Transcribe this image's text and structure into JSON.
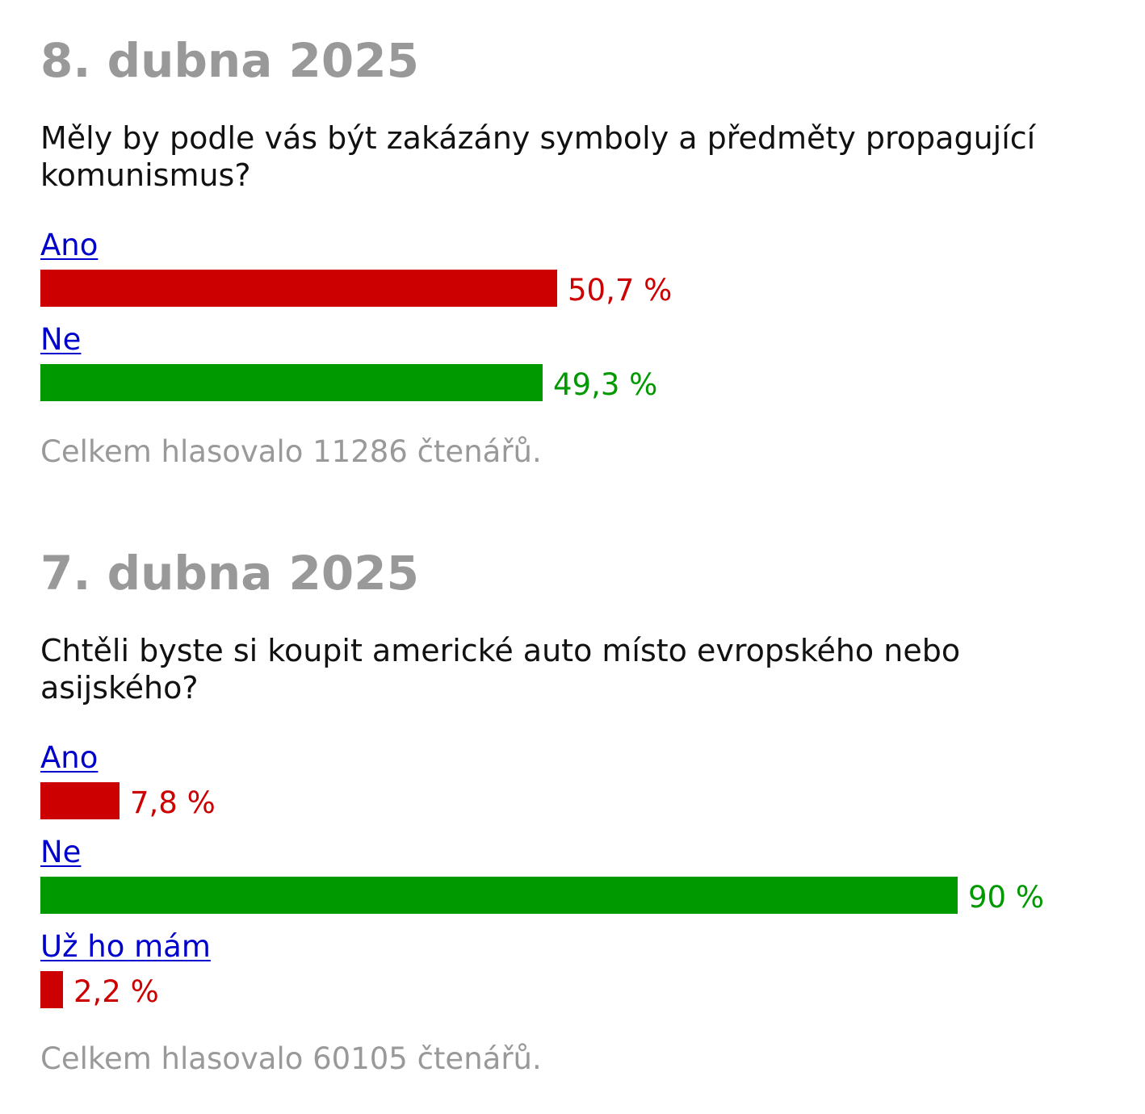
{
  "colors": {
    "date": "#999999",
    "question": "#111111",
    "link": "#0000cc",
    "red": "#cc0000",
    "green": "#009900",
    "total": "#999999"
  },
  "polls": [
    {
      "date": "8. dubna 2025",
      "question": "Měly by podle vás být zakázány symboly a předměty propagující komunismus?",
      "options": [
        {
          "label": "Ano",
          "value_text": "50,7 %",
          "value": 50.7,
          "color": "#cc0000"
        },
        {
          "label": "Ne",
          "value_text": "49,3 %",
          "value": 49.3,
          "color": "#009900"
        }
      ],
      "total": "Celkem hlasovalo 11286 čtenářů."
    },
    {
      "date": "7. dubna 2025",
      "question": "Chtěli byste si koupit americké auto místo evropského nebo asijského?",
      "options": [
        {
          "label": "Ano",
          "value_text": "7,8 %",
          "value": 7.8,
          "color": "#cc0000"
        },
        {
          "label": "Ne",
          "value_text": "90 %",
          "value": 90,
          "color": "#009900"
        },
        {
          "label": "Už ho mám",
          "value_text": "2,2 %",
          "value": 2.2,
          "color": "#cc0000"
        }
      ],
      "total": "Celkem hlasovalo 60105 čtenářů."
    }
  ]
}
